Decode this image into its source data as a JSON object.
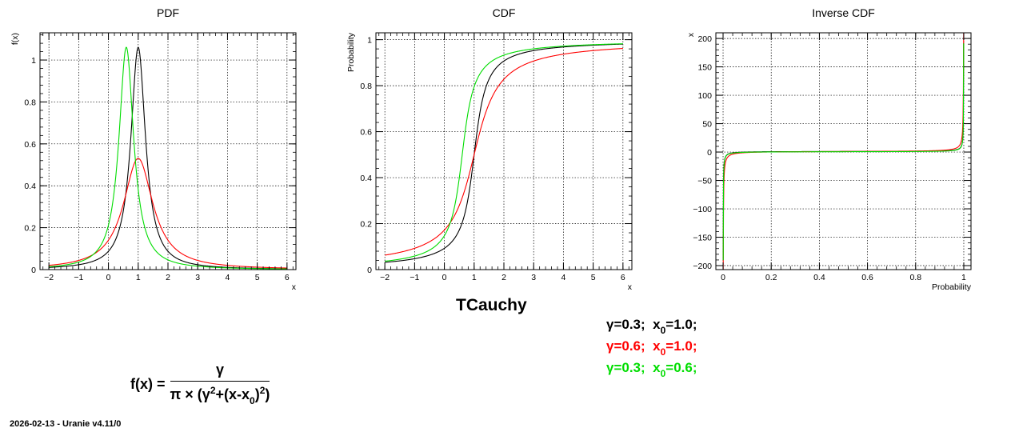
{
  "main_title": "TCauchy",
  "footer": "2026-02-13 - Uranie v4.11/0",
  "legend": [
    {
      "gamma": "γ=0.3;",
      "x0_prefix": "x",
      "x0_sub": "0",
      "x0_value": "=1.0;",
      "color": "#000000"
    },
    {
      "gamma": "γ=0.6;",
      "x0_prefix": "x",
      "x0_sub": "0",
      "x0_value": "=1.0;",
      "color": "#ff0000"
    },
    {
      "gamma": "γ=0.3;",
      "x0_prefix": "x",
      "x0_sub": "0",
      "x0_value": "=0.6;",
      "color": "#00dd00"
    }
  ],
  "formula": {
    "lhs": "f(x) =",
    "numerator": "γ",
    "den_part1": "π × (γ",
    "den_sup1": "2",
    "den_part2": "+(x-x",
    "den_sub": "0",
    "den_part3": ")",
    "den_sup2": "2",
    "den_part4": ")"
  },
  "chart_data": [
    {
      "type": "line",
      "title": "PDF",
      "xlabel": "x",
      "ylabel": "f(x)",
      "xlim": [
        -2.3,
        6.3
      ],
      "ylim": [
        0,
        1.13
      ],
      "xticks": [
        -2,
        -1,
        0,
        1,
        2,
        3,
        4,
        5,
        6
      ],
      "yticks": [
        0,
        0.2,
        0.4,
        0.6,
        0.8,
        1
      ],
      "grid": true,
      "func": "pdf",
      "series": [
        {
          "gamma": 0.3,
          "x0": 1.0,
          "color": "#000000"
        },
        {
          "gamma": 0.6,
          "x0": 1.0,
          "color": "#ff0000"
        },
        {
          "gamma": 0.3,
          "x0": 0.6,
          "color": "#00dd00"
        }
      ]
    },
    {
      "type": "line",
      "title": "CDF",
      "xlabel": "x",
      "ylabel": "Probability",
      "xlim": [
        -2.3,
        6.3
      ],
      "ylim": [
        0,
        1.03
      ],
      "xticks": [
        -2,
        -1,
        0,
        1,
        2,
        3,
        4,
        5,
        6
      ],
      "yticks": [
        0,
        0.2,
        0.4,
        0.6,
        0.8,
        1
      ],
      "grid": true,
      "func": "cdf",
      "series": [
        {
          "gamma": 0.3,
          "x0": 1.0,
          "color": "#000000"
        },
        {
          "gamma": 0.6,
          "x0": 1.0,
          "color": "#ff0000"
        },
        {
          "gamma": 0.3,
          "x0": 0.6,
          "color": "#00dd00"
        }
      ]
    },
    {
      "type": "line",
      "title": "Inverse CDF",
      "xlabel": "Probability",
      "ylabel": "x",
      "xlim": [
        -0.03,
        1.03
      ],
      "ylim": [
        -207,
        210
      ],
      "xticks": [
        0,
        0.2,
        0.4,
        0.6,
        0.8,
        1
      ],
      "yticks": [
        -200,
        -150,
        -100,
        -50,
        0,
        50,
        100,
        150,
        200
      ],
      "grid": true,
      "func": "icdf",
      "series": [
        {
          "gamma": 0.3,
          "x0": 1.0,
          "color": "#000000"
        },
        {
          "gamma": 0.6,
          "x0": 1.0,
          "color": "#ff0000"
        },
        {
          "gamma": 0.3,
          "x0": 0.6,
          "color": "#00dd00"
        }
      ]
    }
  ]
}
